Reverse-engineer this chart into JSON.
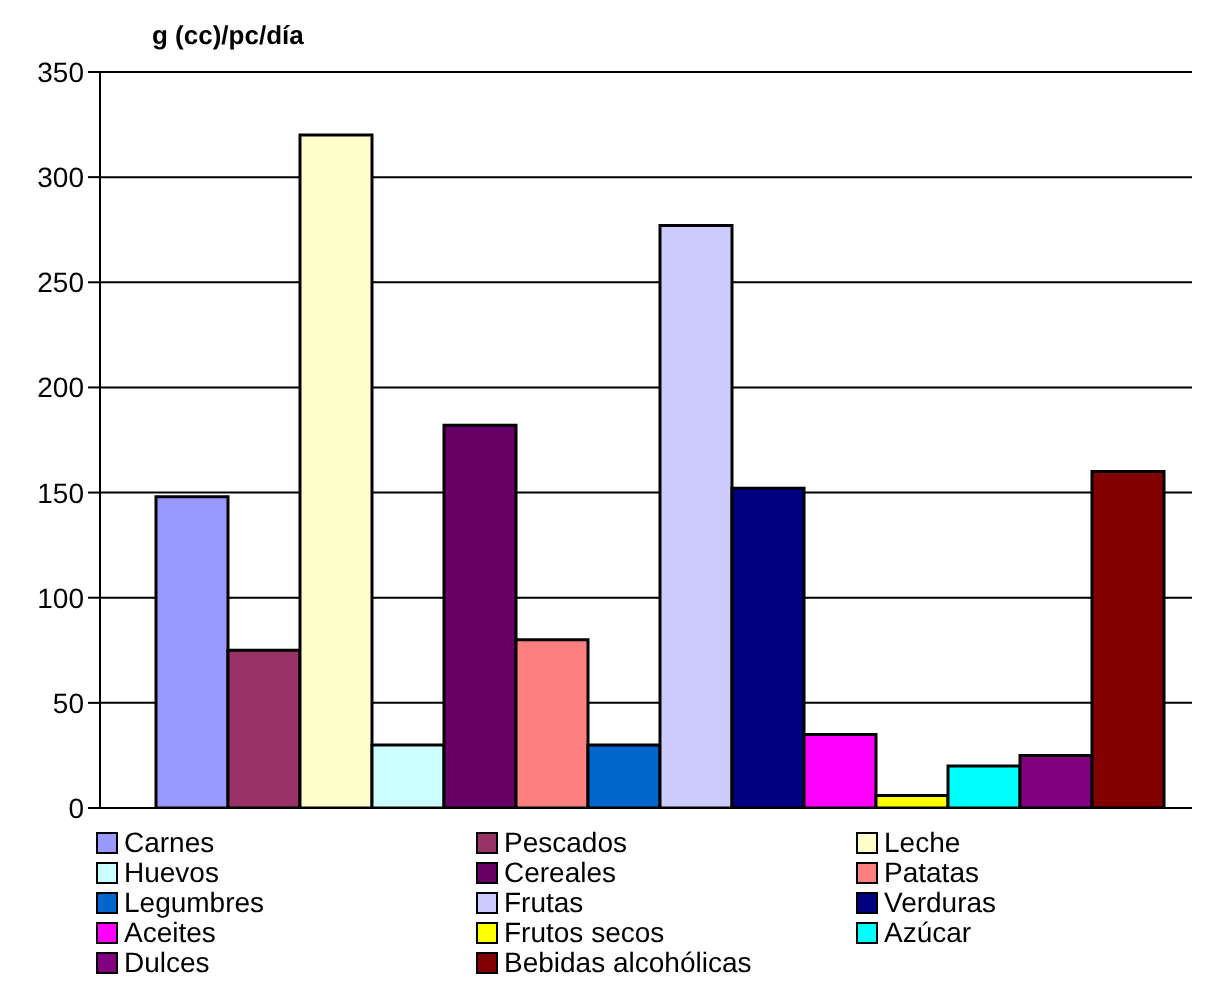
{
  "chart_data": {
    "type": "bar",
    "ylabel": "g (cc)/pc/día",
    "categories": [
      null
    ],
    "series": [
      {
        "name": "Carnes",
        "color": "#9999ff",
        "values": [
          148
        ]
      },
      {
        "name": "Pescados",
        "color": "#993366",
        "values": [
          75
        ]
      },
      {
        "name": "Leche",
        "color": "#ffffcc",
        "values": [
          320
        ]
      },
      {
        "name": "Huevos",
        "color": "#ccffff",
        "values": [
          30
        ]
      },
      {
        "name": "Cereales",
        "color": "#660066",
        "values": [
          182
        ]
      },
      {
        "name": "Patatas",
        "color": "#ff8080",
        "values": [
          80
        ]
      },
      {
        "name": "Legumbres",
        "color": "#0066cc",
        "values": [
          30
        ]
      },
      {
        "name": "Frutas",
        "color": "#ccccff",
        "values": [
          277
        ]
      },
      {
        "name": "Verduras",
        "color": "#000080",
        "values": [
          152
        ]
      },
      {
        "name": "Aceites",
        "color": "#ff00ff",
        "values": [
          35
        ]
      },
      {
        "name": "Frutos secos",
        "color": "#ffff00",
        "values": [
          6
        ]
      },
      {
        "name": "Azúcar",
        "color": "#00ffff",
        "values": [
          20
        ]
      },
      {
        "name": "Dulces",
        "color": "#800080",
        "values": [
          25
        ]
      },
      {
        "name": "Bebidas alcohólicas",
        "color": "#800000",
        "values": [
          160
        ]
      }
    ],
    "ylim": [
      0,
      350
    ],
    "yticks": [
      0,
      50,
      100,
      150,
      200,
      250,
      300,
      350
    ],
    "grid": "y",
    "legend": "bottom",
    "tick_labels": "y"
  }
}
